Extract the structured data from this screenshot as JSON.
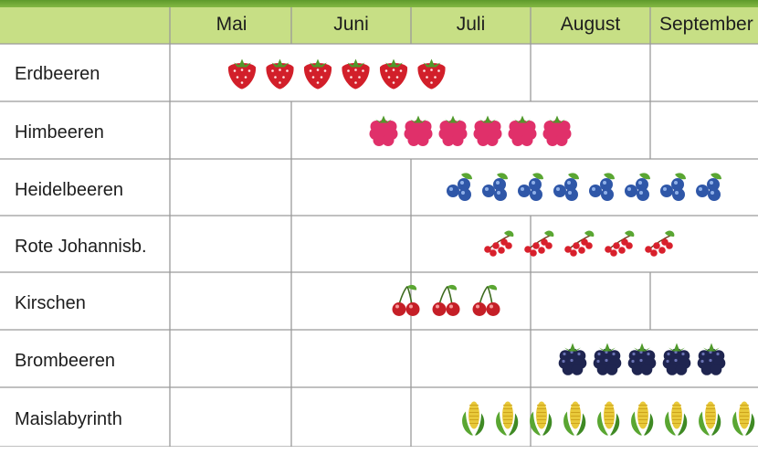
{
  "months": [
    "Mai",
    "Juni",
    "Juli",
    "August",
    "September"
  ],
  "rows": [
    {
      "label": "Erdbeeren",
      "fruit": "strawberry-icon",
      "count": 6,
      "color": "#d21f2a"
    },
    {
      "label": "Himbeeren",
      "fruit": "raspberry-icon",
      "count": 6,
      "color": "#e0306a"
    },
    {
      "label": "Heidelbeeren",
      "fruit": "blueberry-icon",
      "count": 8,
      "color": "#2f57a8"
    },
    {
      "label": "Rote Johannisb.",
      "fruit": "redcurrant-icon",
      "count": 5,
      "color": "#d8202c"
    },
    {
      "label": "Kirschen",
      "fruit": "cherry-icon",
      "count": 3,
      "color": "#c51f27"
    },
    {
      "label": "Brombeeren",
      "fruit": "blackberry-icon",
      "count": 5,
      "color": "#1f2550"
    },
    {
      "label": "Maislabyrinth",
      "fruit": "corn-icon",
      "count": 9,
      "color": "#e8c93a"
    }
  ],
  "colors": {
    "header_bg": "#c7df85",
    "row_bg": "#ffffff",
    "border": "#9a9a9a",
    "frame": "#8cc04a"
  }
}
